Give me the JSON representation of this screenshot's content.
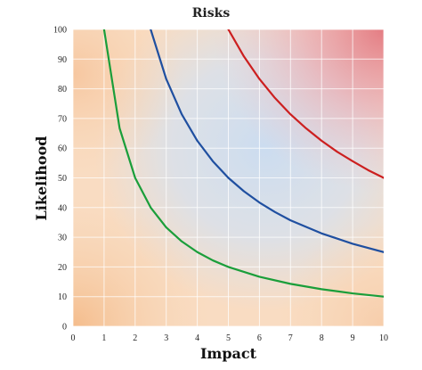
{
  "chart_data": {
    "type": "line",
    "title": "Risks",
    "xlabel": "Impact",
    "ylabel": "Likelihood",
    "xlim": [
      0,
      10
    ],
    "ylim": [
      0,
      100
    ],
    "xticks": [
      0,
      1,
      2,
      3,
      4,
      5,
      6,
      7,
      8,
      9,
      10
    ],
    "yticks": [
      0,
      10,
      20,
      30,
      40,
      50,
      60,
      70,
      80,
      90,
      100
    ],
    "grid": true,
    "background": "risk heat gradient: orange (low) to blue (medium) to red (high)",
    "series": [
      {
        "color": "#1a9e3a",
        "x": [
          1,
          1.5,
          2,
          2.5,
          3,
          3.5,
          4,
          4.5,
          5,
          6,
          7,
          8,
          9,
          10
        ],
        "values": [
          100,
          66.7,
          50,
          40,
          33.3,
          28.6,
          25,
          22.2,
          20,
          16.7,
          14.3,
          12.5,
          11.1,
          10
        ]
      },
      {
        "color": "#1f4fa0",
        "x": [
          2.5,
          3,
          3.5,
          4,
          4.5,
          5,
          5.5,
          6,
          6.5,
          7,
          8,
          9,
          10
        ],
        "values": [
          100,
          83.3,
          71.4,
          62.5,
          55.6,
          50,
          45.5,
          41.7,
          38.5,
          35.7,
          31.3,
          27.8,
          25
        ]
      },
      {
        "color": "#cc1f1f",
        "x": [
          5,
          5.5,
          6,
          6.5,
          7,
          7.5,
          8,
          8.5,
          9,
          9.5,
          10
        ],
        "values": [
          100,
          90.9,
          83.3,
          76.9,
          71.4,
          66.7,
          62.5,
          58.8,
          55.6,
          52.6,
          50
        ]
      }
    ]
  }
}
